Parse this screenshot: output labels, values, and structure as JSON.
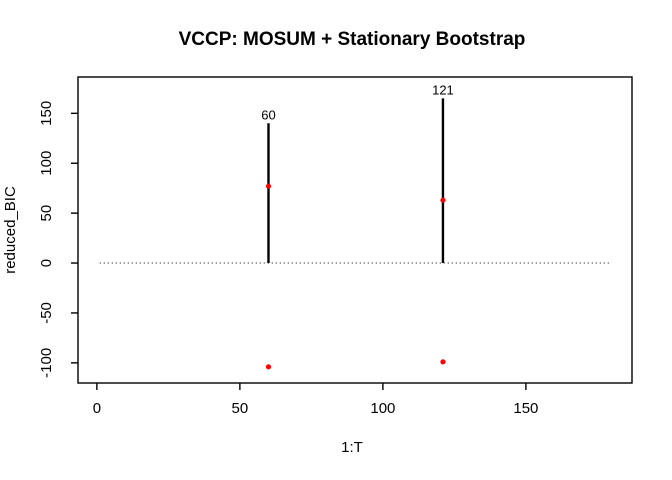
{
  "figure": {
    "title": "VCCP: MOSUM + Stationary Bootstrap",
    "xlabel": "1:T",
    "ylabel": "reduced_BIC"
  },
  "chart_data": {
    "type": "line",
    "title": "VCCP: MOSUM + Stationary Bootstrap",
    "xlabel": "1:T",
    "ylabel": "reduced_BIC",
    "xlim": [
      -6.6,
      187.1
    ],
    "ylim": [
      -120.2,
      186.4
    ],
    "x_ticks": [
      0,
      50,
      100,
      150
    ],
    "y_ticks": [
      -100,
      -50,
      0,
      50,
      100,
      150
    ],
    "grid": false,
    "legend": "none",
    "baseline": {
      "y": 0,
      "x_start": 1,
      "x_end": 180,
      "style": "dotted"
    },
    "changepoint_lines": [
      {
        "x": 60,
        "label": "60",
        "y_from": 0,
        "y_to": 140
      },
      {
        "x": 121,
        "label": "121",
        "y_from": 0,
        "y_to": 165
      }
    ],
    "points": [
      {
        "x": 60,
        "y": 77
      },
      {
        "x": 121,
        "y": 63
      },
      {
        "x": 60,
        "y": -104
      },
      {
        "x": 121,
        "y": -99
      }
    ],
    "colors": {
      "line": "#000000",
      "point": "#ff0000",
      "axis": "#000000",
      "background": "#ffffff"
    }
  }
}
